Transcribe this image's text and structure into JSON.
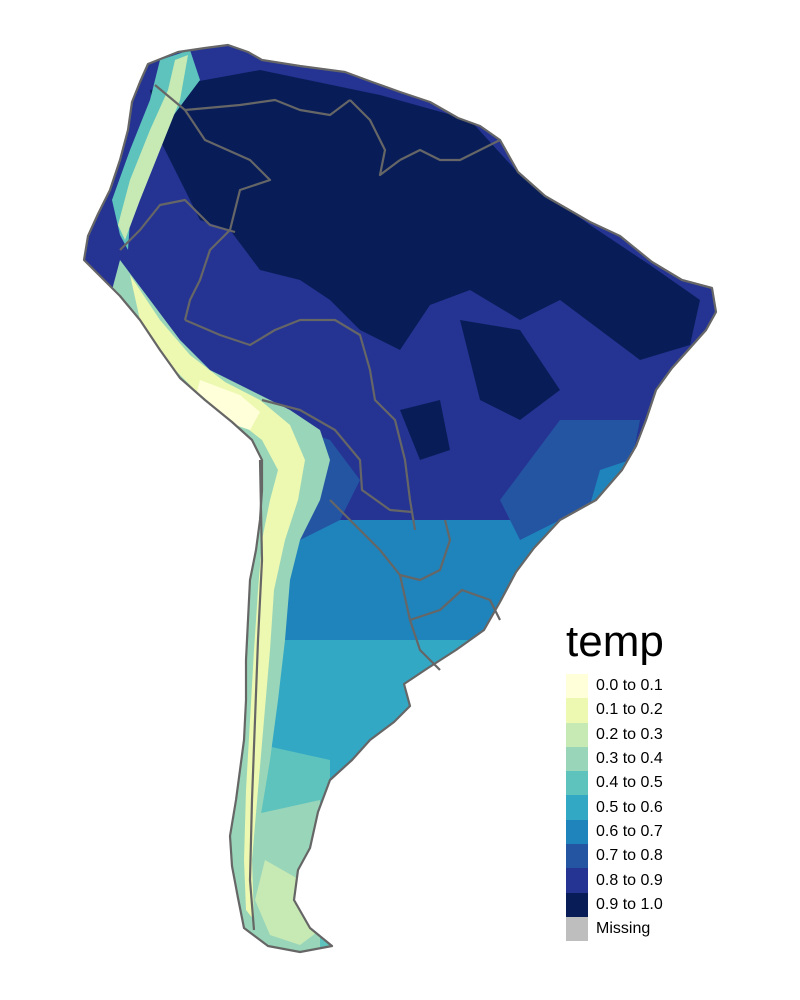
{
  "map": {
    "legend_title": "temp",
    "legend_items": [
      {
        "label": "0.0 to 0.1",
        "color": "#ffffd9"
      },
      {
        "label": "0.1 to 0.2",
        "color": "#edf8b1"
      },
      {
        "label": "0.2 to 0.3",
        "color": "#c7e9b4"
      },
      {
        "label": "0.3 to 0.4",
        "color": "#99d5b9"
      },
      {
        "label": "0.4 to 0.5",
        "color": "#5ec3bd"
      },
      {
        "label": "0.5 to 0.6",
        "color": "#33a8c5"
      },
      {
        "label": "0.6 to 0.7",
        "color": "#1e84bb"
      },
      {
        "label": "0.7 to 0.8",
        "color": "#2355a3"
      },
      {
        "label": "0.8 to 0.9",
        "color": "#253493"
      },
      {
        "label": "0.9 to 1.0",
        "color": "#081d58"
      },
      {
        "label": "Missing",
        "color": "#bebebe"
      }
    ],
    "border_color": "#666666"
  }
}
